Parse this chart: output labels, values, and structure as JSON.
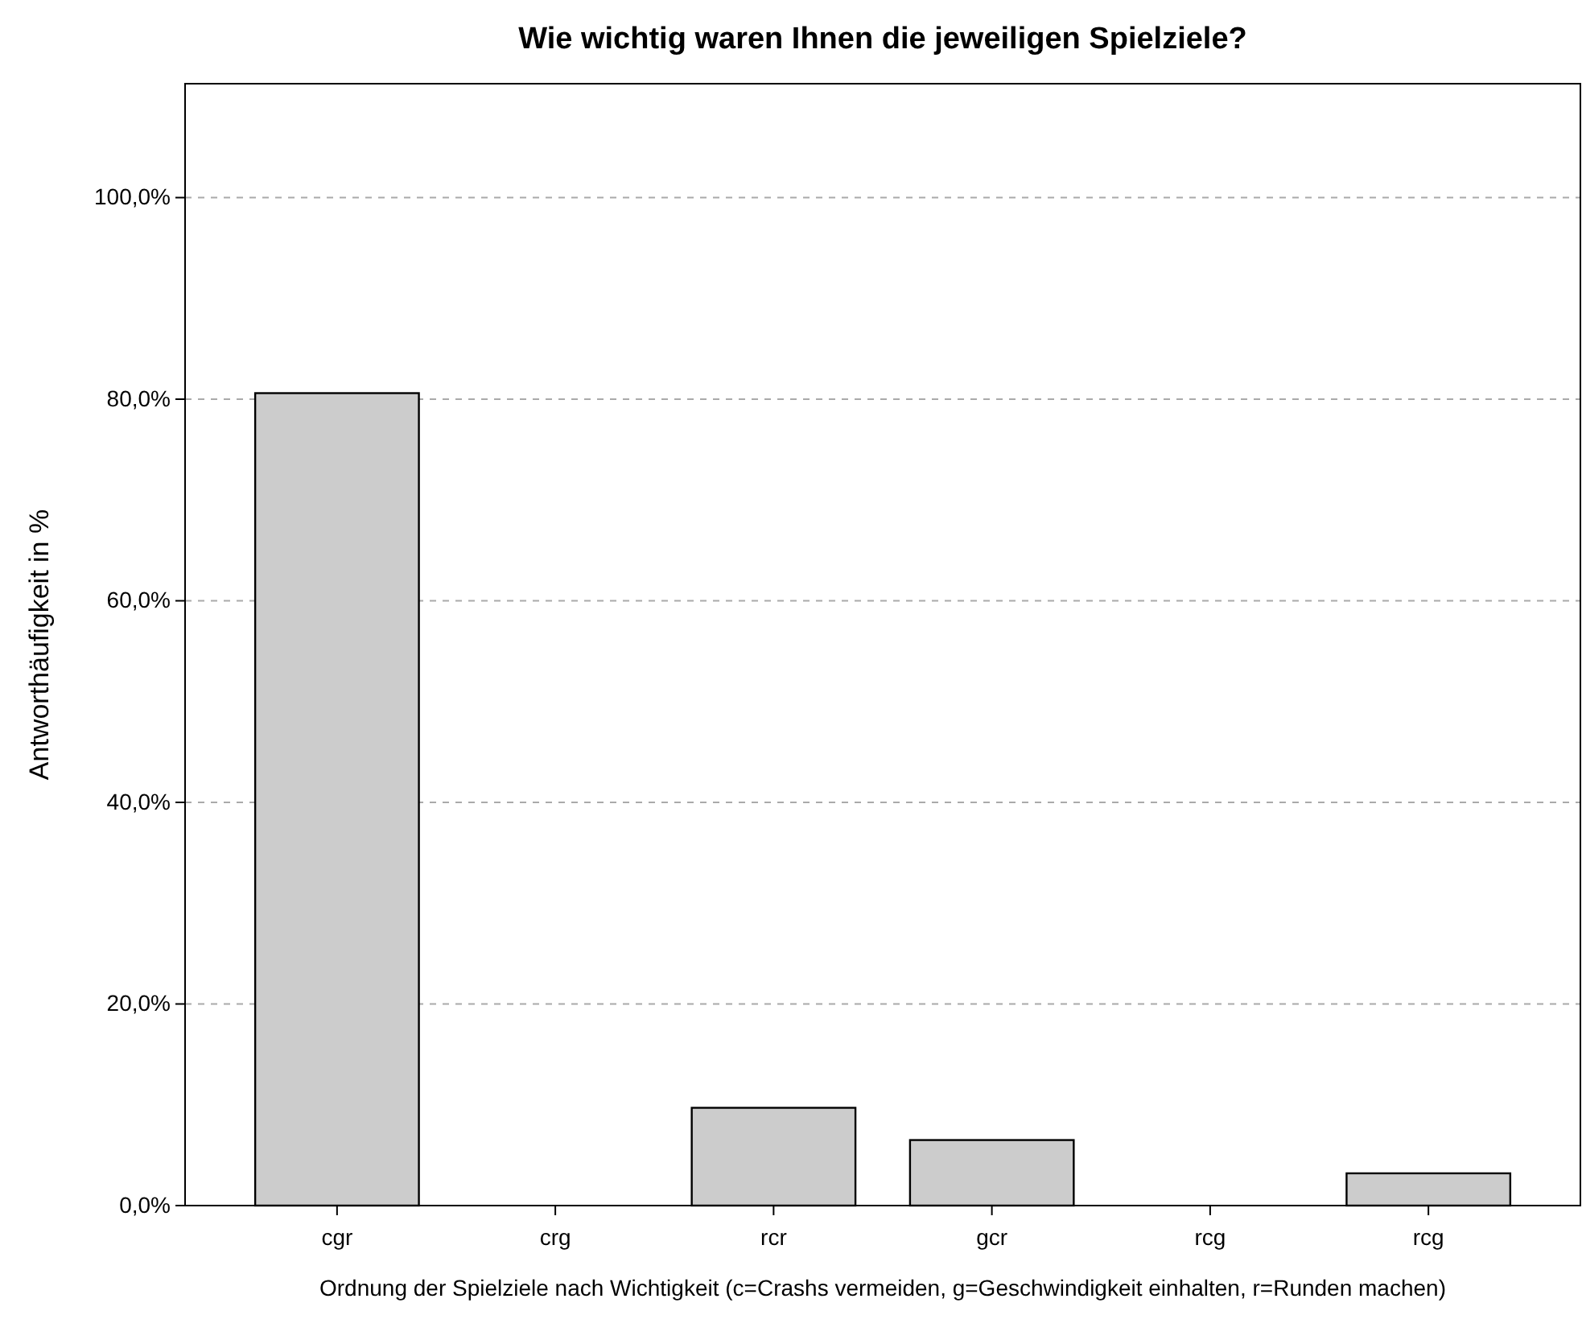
{
  "chart_data": {
    "type": "bar",
    "title": "Wie wichtig waren Ihnen die jeweiligen Spielziele?",
    "xlabel": "Ordnung der Spielziele nach Wichtigkeit (c=Crashs vermeiden, g=Geschwindigkeit einhalten, r=Runden machen)",
    "ylabel": "Antworthäufigkeit in %",
    "categories": [
      "cgr",
      "crg",
      "rcr",
      "gcr",
      "rcg",
      "rcg"
    ],
    "values": [
      80.6,
      0,
      9.7,
      6.5,
      0,
      3.2
    ],
    "color": "#cccccc",
    "ylim": [
      0,
      111.3
    ],
    "yticks": [
      {
        "value": 0,
        "label": "0,0%"
      },
      {
        "value": 20,
        "label": "20,0%"
      },
      {
        "value": 40,
        "label": "40,0%"
      },
      {
        "value": 60,
        "label": "60,0%"
      },
      {
        "value": 80,
        "label": "80,0%"
      },
      {
        "value": 100,
        "label": "100,0%"
      }
    ],
    "grid": "y"
  }
}
